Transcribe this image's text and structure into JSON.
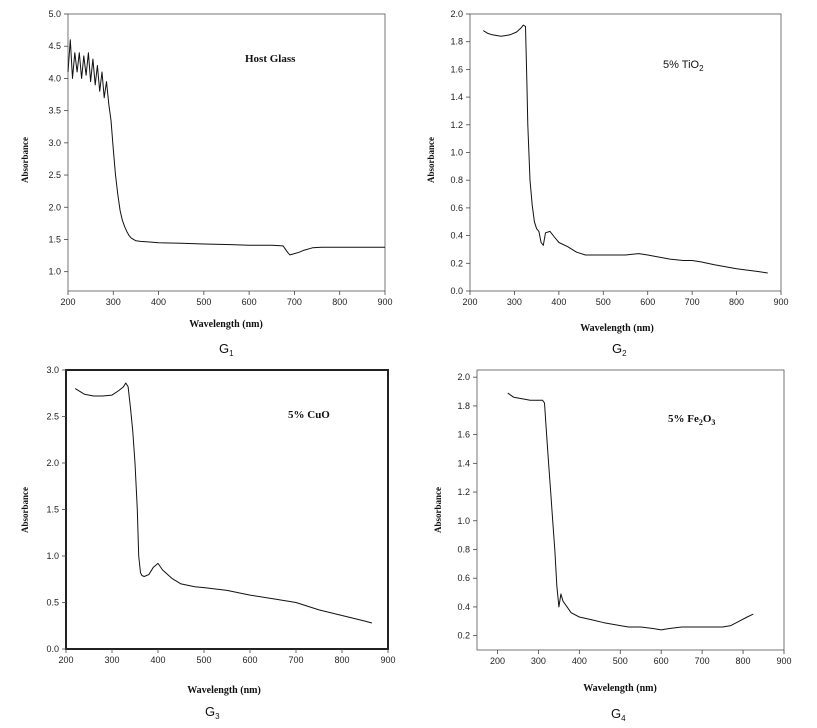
{
  "chart_data": [
    {
      "type": "line",
      "annotation": "Host Glass",
      "caption": "G",
      "caption_sub": "1",
      "xlabel": "Wavelength (nm)",
      "ylabel": "Absorbance",
      "xlim": [
        200,
        900
      ],
      "ylim": [
        0.7,
        5.0
      ],
      "xticks": [
        "200",
        "300",
        "400",
        "500",
        "600",
        "700",
        "800",
        "900"
      ],
      "yticks": [
        "1.0",
        "1.5",
        "2.0",
        "2.5",
        "3.0",
        "3.5",
        "4.0",
        "4.5",
        "5.0"
      ],
      "series": [
        {
          "x": [
            200,
            205,
            210,
            215,
            220,
            225,
            230,
            235,
            240,
            245,
            250,
            255,
            260,
            265,
            270,
            275,
            280,
            285,
            290,
            295,
            300,
            305,
            310,
            315,
            320,
            325,
            330,
            335,
            340,
            350,
            360,
            380,
            400,
            450,
            500,
            560,
            600,
            650,
            675,
            685,
            690,
            700,
            710,
            720,
            740,
            760,
            800,
            850,
            900
          ],
          "y": [
            4.1,
            4.6,
            4.0,
            4.4,
            4.1,
            4.4,
            4.0,
            4.35,
            4.05,
            4.4,
            3.95,
            4.3,
            3.9,
            4.2,
            3.8,
            4.1,
            3.7,
            3.95,
            3.6,
            3.35,
            2.9,
            2.5,
            2.2,
            1.95,
            1.8,
            1.7,
            1.62,
            1.56,
            1.52,
            1.48,
            1.47,
            1.46,
            1.45,
            1.44,
            1.43,
            1.42,
            1.41,
            1.41,
            1.4,
            1.3,
            1.26,
            1.28,
            1.3,
            1.33,
            1.37,
            1.38,
            1.38,
            1.38,
            1.38
          ]
        }
      ]
    },
    {
      "type": "line",
      "annotation": "5% TiO",
      "annotation_sub": "2",
      "caption": "G",
      "caption_sub": "2",
      "xlabel": "Wavelength (nm)",
      "ylabel": "Absorbance",
      "xlim": [
        200,
        900
      ],
      "ylim": [
        0.0,
        2.0
      ],
      "xticks": [
        "200",
        "300",
        "400",
        "500",
        "600",
        "700",
        "800",
        "900"
      ],
      "yticks": [
        "0.0",
        "0.2",
        "0.4",
        "0.6",
        "0.8",
        "1.0",
        "1.2",
        "1.4",
        "1.6",
        "1.8",
        "2.0"
      ],
      "series": [
        {
          "x": [
            230,
            240,
            250,
            270,
            290,
            305,
            315,
            320,
            325,
            328,
            330,
            335,
            340,
            345,
            350,
            355,
            360,
            365,
            370,
            380,
            390,
            400,
            420,
            440,
            460,
            500,
            550,
            580,
            600,
            650,
            680,
            700,
            720,
            750,
            800,
            850,
            870
          ],
          "y": [
            1.88,
            1.86,
            1.85,
            1.84,
            1.85,
            1.87,
            1.9,
            1.92,
            1.91,
            1.5,
            1.2,
            0.8,
            0.62,
            0.5,
            0.45,
            0.43,
            0.35,
            0.33,
            0.42,
            0.43,
            0.39,
            0.35,
            0.32,
            0.28,
            0.26,
            0.26,
            0.26,
            0.27,
            0.26,
            0.23,
            0.22,
            0.22,
            0.21,
            0.19,
            0.16,
            0.14,
            0.13
          ]
        }
      ]
    },
    {
      "type": "line",
      "annotation": "5% CuO",
      "caption": "G",
      "caption_sub": "3",
      "xlabel": "Wavelength (nm)",
      "ylabel": "Absorbance",
      "xlim": [
        200,
        900
      ],
      "ylim": [
        0.0,
        3.0
      ],
      "xticks": [
        "200",
        "300",
        "400",
        "500",
        "600",
        "700",
        "800",
        "900"
      ],
      "yticks": [
        "0.0",
        "0.5",
        "1.0",
        "1.5",
        "2.0",
        "2.5",
        "3.0"
      ],
      "series": [
        {
          "x": [
            220,
            240,
            260,
            280,
            300,
            315,
            325,
            330,
            335,
            340,
            345,
            350,
            355,
            358,
            362,
            365,
            370,
            380,
            390,
            400,
            410,
            430,
            450,
            480,
            500,
            550,
            600,
            650,
            700,
            750,
            800,
            850,
            865
          ],
          "y": [
            2.8,
            2.74,
            2.72,
            2.72,
            2.73,
            2.78,
            2.82,
            2.86,
            2.82,
            2.6,
            2.35,
            2.0,
            1.5,
            1.0,
            0.82,
            0.79,
            0.78,
            0.8,
            0.88,
            0.92,
            0.85,
            0.76,
            0.7,
            0.67,
            0.66,
            0.63,
            0.58,
            0.54,
            0.5,
            0.42,
            0.36,
            0.3,
            0.28
          ]
        }
      ]
    },
    {
      "type": "line",
      "annotation": "5% Fe",
      "annotation_sub": "2",
      "annotation_tail": "O",
      "annotation_sub2": "3",
      "caption": "G",
      "caption_sub": "4",
      "xlabel": "Wavelength (nm)",
      "ylabel": "Absorbance",
      "xlim": [
        150,
        900
      ],
      "ylim": [
        0.1,
        2.05
      ],
      "xticks": [
        "200",
        "300",
        "400",
        "500",
        "600",
        "700",
        "800",
        "900"
      ],
      "yticks": [
        "0.2",
        "0.4",
        "0.6",
        "0.8",
        "1.0",
        "1.2",
        "1.4",
        "1.6",
        "1.8",
        "2.0"
      ],
      "series": [
        {
          "x": [
            225,
            240,
            260,
            280,
            300,
            310,
            315,
            320,
            325,
            330,
            335,
            340,
            345,
            350,
            355,
            360,
            370,
            380,
            400,
            430,
            460,
            500,
            520,
            550,
            580,
            600,
            620,
            650,
            700,
            750,
            770,
            790,
            810,
            825
          ],
          "y": [
            1.89,
            1.86,
            1.85,
            1.84,
            1.84,
            1.84,
            1.82,
            1.6,
            1.4,
            1.2,
            1.0,
            0.8,
            0.55,
            0.4,
            0.49,
            0.44,
            0.4,
            0.36,
            0.33,
            0.31,
            0.29,
            0.27,
            0.26,
            0.26,
            0.25,
            0.24,
            0.25,
            0.26,
            0.26,
            0.26,
            0.27,
            0.3,
            0.33,
            0.35
          ]
        }
      ]
    }
  ]
}
